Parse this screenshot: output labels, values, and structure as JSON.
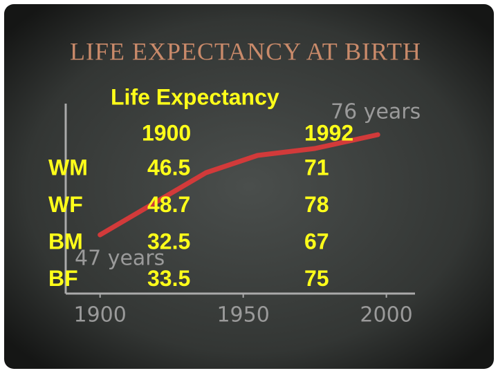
{
  "chart_data": {
    "type": "line",
    "title": "LIFE EXPECTANCY AT BIRTH",
    "x": [
      1900,
      1937,
      1955,
      1975,
      1997
    ],
    "values": [
      47,
      65,
      70,
      72,
      76
    ],
    "color": "#d23a3a",
    "xlim": [
      1888,
      2010
    ],
    "xticks": [
      1900,
      1950,
      2000
    ],
    "ylim": [
      30,
      85
    ],
    "annotations": [
      "47 years",
      "76 years"
    ]
  },
  "table": {
    "title": "Life Expectancy",
    "columns": [
      1900,
      1992
    ],
    "rows": [
      [
        "WM",
        46.5,
        71
      ],
      [
        "WF",
        48.7,
        78
      ],
      [
        "BM",
        32.5,
        67
      ],
      [
        "BF",
        33.5,
        75
      ]
    ]
  }
}
